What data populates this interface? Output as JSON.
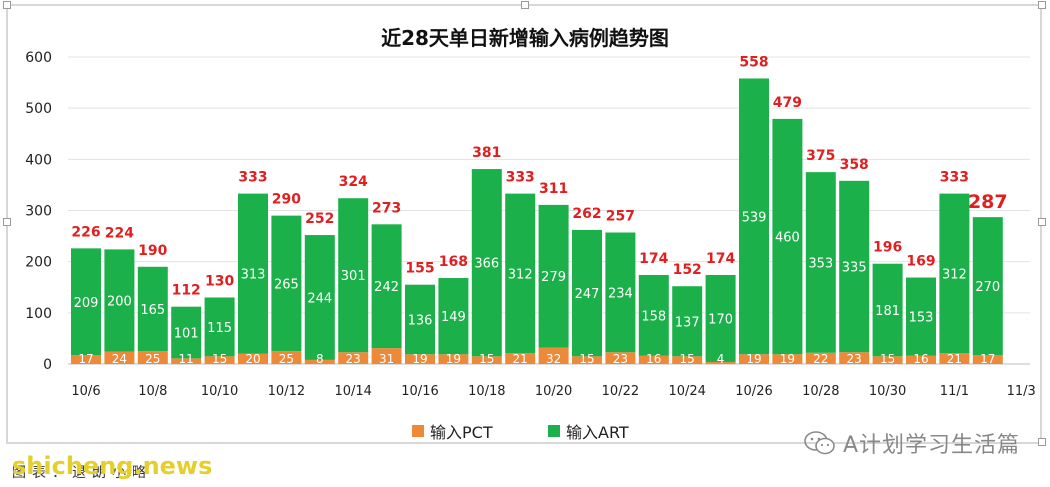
{
  "chart_data": {
    "type": "bar",
    "stacked": true,
    "title": "近28天单日新增输入病例趋势图",
    "ylim": [
      0,
      600
    ],
    "yticks": [
      0,
      100,
      200,
      300,
      400,
      500,
      600
    ],
    "x_labels": [
      "10/6",
      "10/8",
      "10/10",
      "10/12",
      "10/14",
      "10/16",
      "10/18",
      "10/20",
      "10/22",
      "10/24",
      "10/26",
      "10/28",
      "10/30",
      "11/1",
      "11/3"
    ],
    "categories": [
      "10/6",
      "10/7",
      "10/8",
      "10/9",
      "10/10",
      "10/11",
      "10/12",
      "10/13",
      "10/14",
      "10/15",
      "10/16",
      "10/17",
      "10/18",
      "10/19",
      "10/20",
      "10/21",
      "10/22",
      "10/23",
      "10/24",
      "10/25",
      "10/26",
      "10/27",
      "10/28",
      "10/29",
      "10/30",
      "10/31",
      "11/1",
      "11/2"
    ],
    "series": [
      {
        "name": "输入PCT",
        "color": "#ed8a3a",
        "values": [
          17,
          24,
          25,
          11,
          15,
          20,
          25,
          8,
          23,
          31,
          19,
          19,
          15,
          21,
          32,
          15,
          23,
          16,
          15,
          4,
          19,
          19,
          22,
          23,
          15,
          16,
          21,
          17
        ]
      },
      {
        "name": "输入ART",
        "color": "#1bb04a",
        "values": [
          209,
          200,
          165,
          101,
          115,
          313,
          265,
          244,
          301,
          242,
          136,
          149,
          366,
          312,
          279,
          247,
          234,
          158,
          137,
          170,
          539,
          460,
          353,
          335,
          181,
          153,
          312,
          270
        ]
      }
    ],
    "totals": [
      226,
      224,
      190,
      112,
      130,
      333,
      290,
      252,
      324,
      273,
      155,
      168,
      381,
      333,
      311,
      262,
      257,
      174,
      152,
      174,
      558,
      479,
      375,
      358,
      196,
      169,
      333,
      287
    ],
    "total_label_color": "#e02020",
    "legend_position": "bottom"
  },
  "watermark": "A计划学习生活篇",
  "site_watermark": "shicheng.news",
  "source_text": "图表：退朗小略"
}
